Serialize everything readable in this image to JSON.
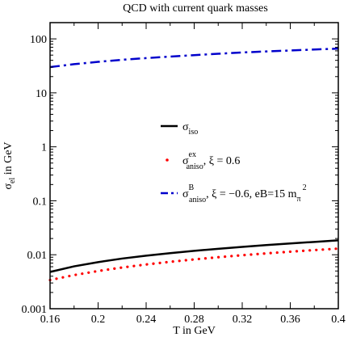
{
  "chart_data": {
    "type": "line",
    "title": "QCD with current quark masses",
    "xlabel": "T in GeV",
    "ylabel": "σ_el in GeV",
    "x_scale": "linear",
    "y_scale": "log",
    "xlim": [
      0.16,
      0.4
    ],
    "ylim": [
      0.001,
      200
    ],
    "x_ticks": [
      "0.16",
      "0.2",
      "0.24",
      "0.28",
      "0.32",
      "0.36",
      "0.4"
    ],
    "y_ticks": [
      "0.001",
      "0.01",
      "0.1",
      "1",
      "10",
      "100"
    ],
    "legend_position": "center-right",
    "x": [
      0.16,
      0.18,
      0.2,
      0.22,
      0.24,
      0.26,
      0.28,
      0.3,
      0.32,
      0.34,
      0.36,
      0.38,
      0.4
    ],
    "series": [
      {
        "key": "iso",
        "legend": {
          "main": "σ",
          "sub": "iso",
          "tail": ""
        },
        "color": "#000000",
        "style": "solid",
        "values": [
          0.0048,
          0.0061,
          0.0073,
          0.0085,
          0.0096,
          0.0107,
          0.0118,
          0.0129,
          0.014,
          0.0151,
          0.0162,
          0.0173,
          0.0185
        ]
      },
      {
        "key": "aniso_ex",
        "legend": {
          "main": "σ",
          "sup": "ex",
          "sub": "aniso",
          "tail": ", ξ = 0.6"
        },
        "color": "#ff0000",
        "style": "dotted",
        "values": [
          0.0034,
          0.0042,
          0.005,
          0.0058,
          0.0066,
          0.0074,
          0.0082,
          0.009,
          0.0098,
          0.0106,
          0.0114,
          0.0122,
          0.013
        ]
      },
      {
        "key": "aniso_B",
        "legend": {
          "main": "σ",
          "sup": "B",
          "sub": "aniso",
          "tail": ", ξ = −0.6, eB=15 m",
          "tail_sub": "π",
          "tail_sup": "2"
        },
        "color": "#0000cc",
        "style": "dashdot",
        "values": [
          30,
          34,
          37.5,
          41,
          44,
          47,
          50,
          53,
          56,
          58.5,
          61,
          63.5,
          66
        ]
      }
    ]
  }
}
